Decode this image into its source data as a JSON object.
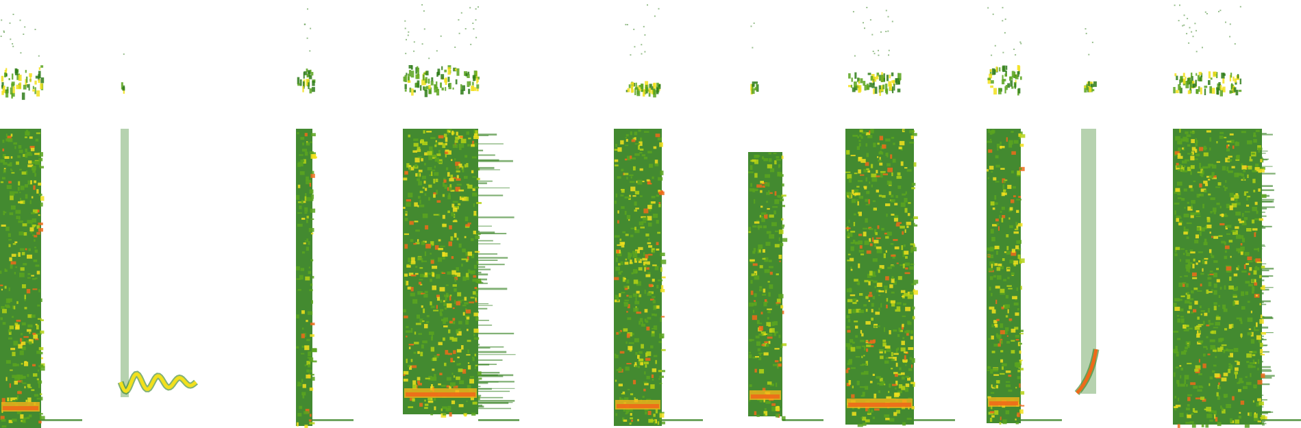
{
  "figure": {
    "kind": "spectrogram-montage",
    "background": "#ffffff",
    "colormap": [
      "#2f7d1a",
      "#5aa51f",
      "#b5d214",
      "#f2e01c",
      "#f5b319",
      "#ee6a1a"
    ],
    "segments": [
      {
        "id": "seg-01",
        "style": "harmonic-stack"
      },
      {
        "id": "seg-02",
        "style": "chirp-trace"
      },
      {
        "id": "seg-03",
        "style": "narrow-band"
      },
      {
        "id": "seg-04",
        "style": "dense-broadband"
      },
      {
        "id": "seg-05",
        "style": "ragged-broadband"
      },
      {
        "id": "seg-06",
        "style": "bursty-band"
      },
      {
        "id": "seg-07",
        "style": "dense-broadband"
      },
      {
        "id": "seg-08",
        "style": "dense-narrow"
      },
      {
        "id": "seg-09",
        "style": "sweep-trace"
      },
      {
        "id": "seg-10",
        "style": "streaky-broadband"
      }
    ]
  }
}
